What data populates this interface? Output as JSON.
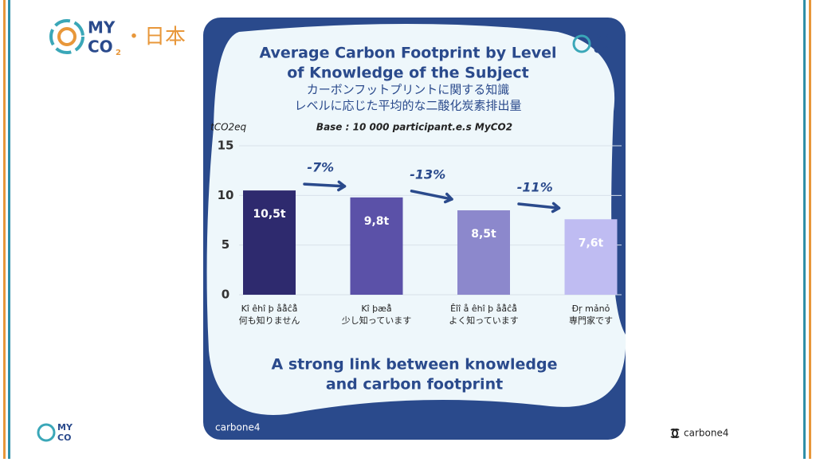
{
  "logo": {
    "my": "MY",
    "co": "CO",
    "sub": "2",
    "region": "・日本"
  },
  "brand": "carbone4",
  "chart_data": {
    "type": "bar",
    "title": [
      "Average Carbon Footprint by Level",
      "of Knowledge of the Subject"
    ],
    "subtitle": [
      "カーボンフットプリントに関する知識",
      "レベルに応じた平均的な二酸化炭素排出量"
    ],
    "y_label": "tCO2eq",
    "note": "Base : 10 000 participant.e.s MyCO2",
    "categories": [
      "何も知りません",
      "少し知っています",
      "よく知っています",
      "専門家です"
    ],
    "category_glyphs": [
      "Kî êhî þ åå̂ĉå̂",
      "Kî þæå̂",
      "Êîî å êhî þ åå̂ĉå̂",
      "Đŗ mảnỏ"
    ],
    "values": [
      10.5,
      9.8,
      8.5,
      7.6
    ],
    "value_labels": [
      "10,5t",
      "9,8t",
      "8,5t",
      "7,6t"
    ],
    "colors": [
      "#2e2a6e",
      "#5b51a8",
      "#8c88cc",
      "#bfbcf2"
    ],
    "ylim": [
      0,
      15
    ],
    "yticks": [
      0,
      5,
      10,
      15
    ],
    "grid": true,
    "annotations": [
      "-7%",
      "-13%",
      "-11%"
    ],
    "conclusion": [
      "A strong link between knowledge",
      "and carbon footprint"
    ]
  }
}
